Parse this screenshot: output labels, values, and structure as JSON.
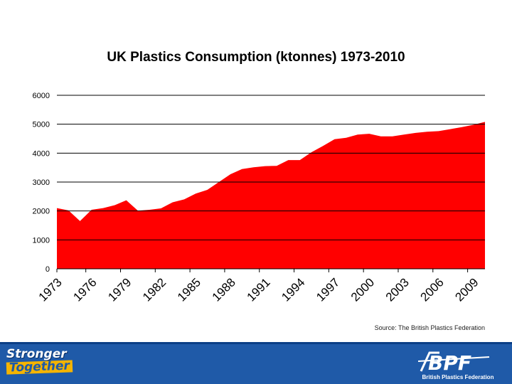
{
  "chart_data": {
    "type": "area",
    "title": "UK Plastics Consumption (ktonnes) 1973-2010",
    "xlabel": "",
    "ylabel": "",
    "ylim": [
      0,
      6000
    ],
    "yticks": [
      0,
      1000,
      2000,
      3000,
      4000,
      5000,
      6000
    ],
    "xtick_labels": [
      "1973",
      "1976",
      "1979",
      "1982",
      "1985",
      "1988",
      "1991",
      "1994",
      "1997",
      "2000",
      "2003",
      "2006",
      "2009"
    ],
    "grid": "horizontal major lines",
    "fill_color": "#ff0000",
    "x": [
      1973,
      1974,
      1975,
      1976,
      1977,
      1978,
      1979,
      1980,
      1981,
      1982,
      1983,
      1984,
      1985,
      1986,
      1987,
      1988,
      1989,
      1990,
      1991,
      1992,
      1993,
      1994,
      1995,
      1996,
      1997,
      1998,
      1999,
      2000,
      2001,
      2002,
      2003,
      2004,
      2005,
      2006,
      2007,
      2008,
      2009,
      2010
    ],
    "values": [
      2100,
      2020,
      1650,
      2040,
      2100,
      2200,
      2370,
      2010,
      2040,
      2090,
      2300,
      2400,
      2600,
      2730,
      3000,
      3270,
      3450,
      3510,
      3550,
      3560,
      3760,
      3760,
      4030,
      4250,
      4480,
      4530,
      4640,
      4670,
      4580,
      4580,
      4640,
      4700,
      4740,
      4760,
      4830,
      4900,
      4980,
      5080
    ]
  },
  "source": "Source: The British Plastics Federation",
  "footer": {
    "slogan_line1": "Stronger",
    "slogan_line2": "Together",
    "logo_text": "BPF",
    "logo_tagline": "British Plastics Federation"
  }
}
